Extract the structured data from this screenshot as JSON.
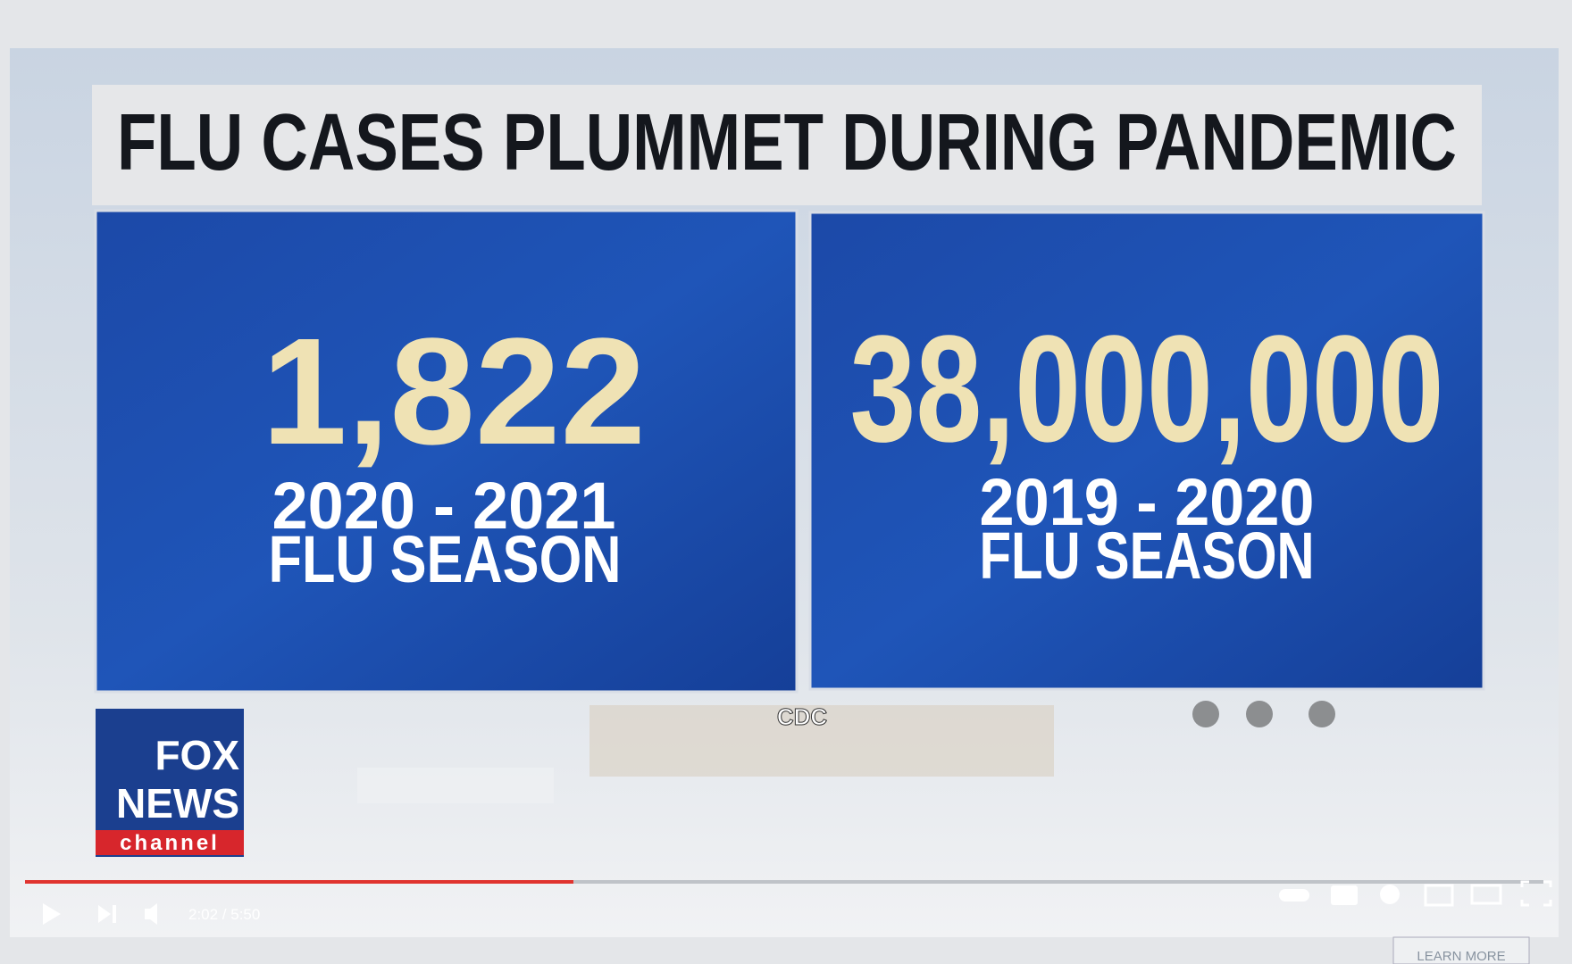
{
  "header": {
    "title": "FLU CASES PLUMMET DURING PANDEMIC"
  },
  "panels": [
    {
      "number": "1,822",
      "season": "2020 - 2021",
      "label": "FLU SEASON"
    },
    {
      "number": "38,000,000",
      "season": "2019 - 2020",
      "label": "FLU SEASON"
    }
  ],
  "source": "CDC",
  "logo": {
    "line1": "FOX",
    "line2": "NEWS",
    "line3": "channel"
  },
  "player": {
    "time": "2:02 / 5:50",
    "cta": "LEARN MORE"
  }
}
